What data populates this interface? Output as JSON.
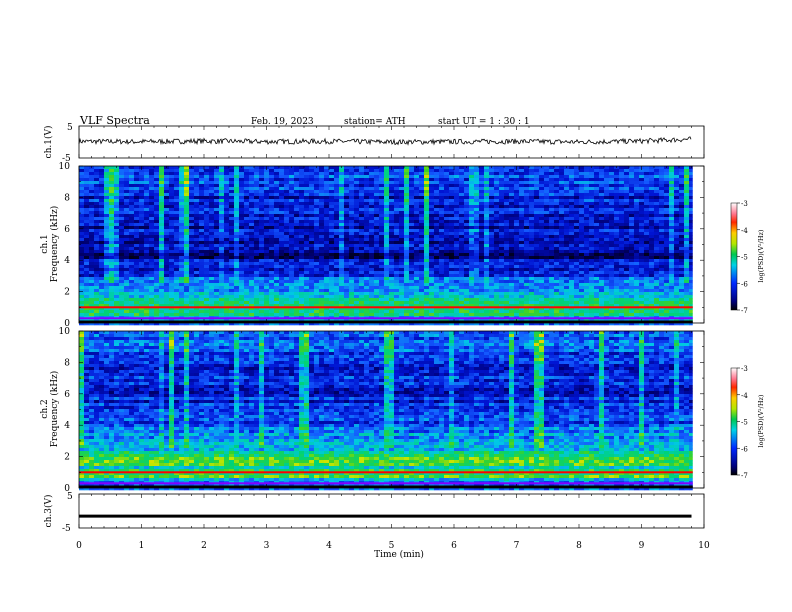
{
  "header": {
    "title": "VLF  Spectra",
    "date": "Feb. 19, 2023",
    "station": "station= ATH",
    "start": "start  UT  =    1  : 30 : 1"
  },
  "colors": {
    "spectrogram_ramp": [
      "#000033",
      "#00007a",
      "#0000c8",
      "#1a4bff",
      "#00b4e6",
      "#00e6b4",
      "#3cd23c",
      "#c8e600",
      "#ffcc00",
      "#ff3c00",
      "#d2001e",
      "#ff8fa0",
      "#ffffff"
    ],
    "trace": "#000000",
    "line_1000hz": "#ff0000",
    "line_300hz": "#8000ff"
  },
  "chart_data": [
    {
      "type": "line",
      "name": "ch1-waveform",
      "ylabel": "ch.1(V)",
      "ylim": [
        -5,
        5
      ],
      "yticks": [
        "5",
        "-5"
      ],
      "xlim": [
        0,
        10
      ],
      "x": [
        0,
        1,
        2,
        3,
        4,
        5,
        6,
        7,
        8,
        9,
        9.8
      ],
      "y": [
        0.2,
        0.1,
        0.3,
        0.1,
        0.2,
        0.0,
        0.1,
        0.2,
        0.0,
        0.3,
        0.9
      ]
    },
    {
      "type": "heatmap",
      "name": "ch1-spectrogram",
      "ylabel": "ch.1\nFrequency (kHz)",
      "ylim": [
        0,
        10
      ],
      "yticks": [
        "0",
        "2",
        "4",
        "6",
        "8",
        "10"
      ],
      "xlim": [
        0,
        10
      ],
      "colorbar": {
        "label": "log(PSD)(V²/Hz)",
        "range": [
          -7,
          -3
        ],
        "ticks": [
          "-3",
          "-4",
          "-5",
          "-6",
          "-7"
        ]
      },
      "freq_kHz": [
        0.25,
        0.75,
        1.25,
        1.75,
        2.25,
        2.75,
        3.25,
        3.75,
        4.25,
        4.75,
        5.25,
        5.75,
        6.25,
        6.75,
        7.25,
        7.75,
        8.25,
        8.75,
        9.25,
        9.75
      ],
      "mean_logpsd": [
        -5.6,
        -4.9,
        -5.0,
        -5.3,
        -5.7,
        -5.9,
        -6.0,
        -6.2,
        -6.6,
        -6.4,
        -6.2,
        -6.3,
        -6.2,
        -6.3,
        -6.2,
        -6.2,
        -6.1,
        -6.0,
        -5.9,
        -5.8
      ]
    },
    {
      "type": "heatmap",
      "name": "ch2-spectrogram",
      "ylabel": "ch.2\nFrequency (kHz)",
      "ylim": [
        0,
        10
      ],
      "yticks": [
        "0",
        "2",
        "4",
        "6",
        "8",
        "10"
      ],
      "xlim": [
        0,
        10
      ],
      "colorbar": {
        "label": "log(PSD)(V²/Hz)",
        "range": [
          -7,
          -3
        ],
        "ticks": [
          "-3",
          "-4",
          "-5",
          "-6",
          "-7"
        ]
      },
      "freq_kHz": [
        0.25,
        0.75,
        1.25,
        1.75,
        2.25,
        2.75,
        3.25,
        3.75,
        4.25,
        4.75,
        5.25,
        5.75,
        6.25,
        6.75,
        7.25,
        7.75,
        8.25,
        8.75,
        9.25,
        9.75
      ],
      "mean_logpsd": [
        -5.6,
        -4.9,
        -5.1,
        -4.8,
        -5.2,
        -5.5,
        -5.6,
        -5.8,
        -6.0,
        -5.9,
        -6.0,
        -6.1,
        -6.1,
        -6.2,
        -6.1,
        -6.1,
        -6.0,
        -5.9,
        -5.8,
        -5.7
      ]
    },
    {
      "type": "line",
      "name": "ch3-waveform",
      "ylabel": "ch.3(V)",
      "ylim": [
        -5,
        5
      ],
      "yticks": [
        "5",
        "-5"
      ],
      "xlim": [
        0,
        10
      ],
      "x": [
        0,
        9.8
      ],
      "y": [
        -1.5,
        -1.5
      ]
    }
  ],
  "x_axis": {
    "label": "Time  (min)",
    "ticks": [
      "0",
      "1",
      "2",
      "3",
      "4",
      "5",
      "6",
      "7",
      "8",
      "9",
      "10"
    ]
  }
}
